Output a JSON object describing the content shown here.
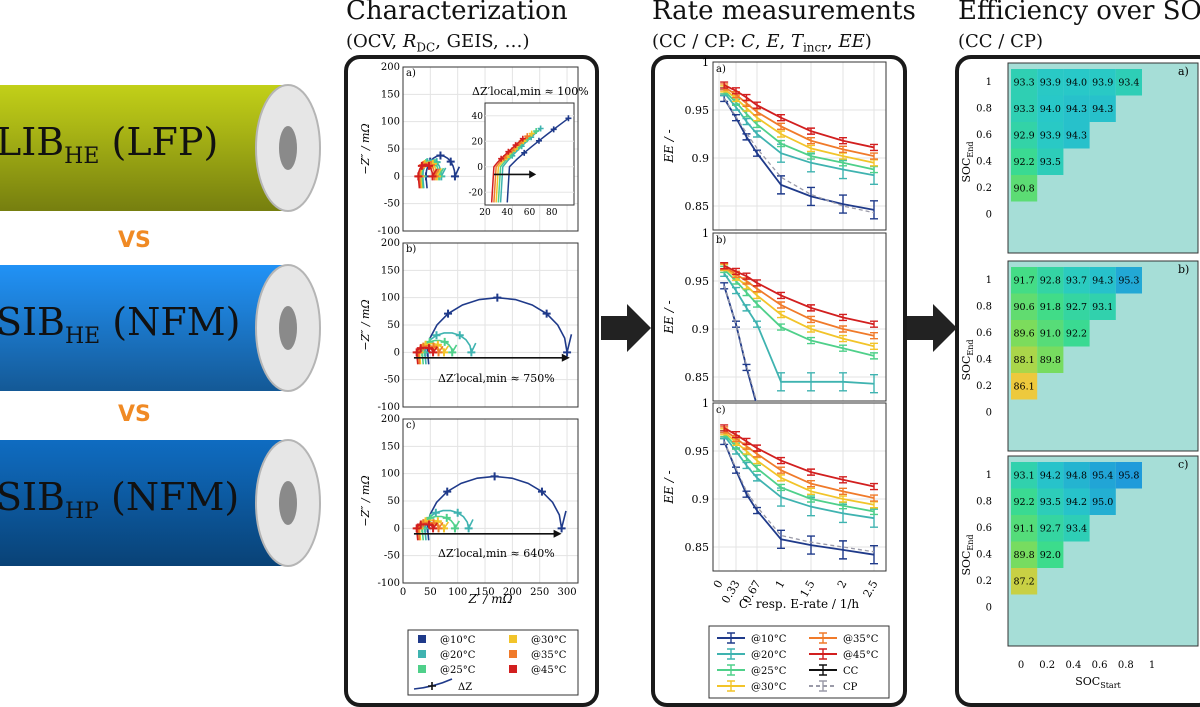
{
  "cells": [
    {
      "base": "LIB",
      "sub": "HE",
      "chem": "(LFP)",
      "color": "#a9b515"
    },
    {
      "base": "SIB",
      "sub": "HE",
      "chem": "(NFM)",
      "color": "#1d7fd6"
    },
    {
      "base": "SIB",
      "sub": "HP",
      "chem": "(NFM)",
      "color": "#0d5ea8"
    }
  ],
  "vs_label": "VS",
  "vs_color": "#f08a24",
  "columns": {
    "characterization": {
      "title": "Characterization",
      "subtitle": "(OCV, R_DC, GEIS, …)"
    },
    "rate": {
      "title": "Rate measurements",
      "subtitle": "(CC / CP: C, E, T_incr, EE)"
    },
    "efficiency": {
      "title": "Efficiency over SOC",
      "subtitle": "(CC / CP)"
    }
  },
  "chart_data": [
    {
      "type": "scatter",
      "name": "eis",
      "xlabel": "Z′ / mΩ",
      "ylabel": "−Z″ / mΩ",
      "xlim": [
        0,
        320
      ],
      "ylim": [
        -100,
        200
      ],
      "xticks": [
        0,
        50,
        100,
        150,
        200,
        250,
        300
      ],
      "yticks": [
        -100,
        -50,
        0,
        50,
        100,
        150,
        200
      ],
      "temperature_colors": {
        "@10°C": "#1f3a8a",
        "@20°C": "#3fb3b0",
        "@25°C": "#4fd08a",
        "@30°C": "#f2c42a",
        "@35°C": "#f07a2a",
        "@45°C": "#d21f1f"
      },
      "legend": [
        "@10°C",
        "@20°C",
        "@25°C",
        "@30°C",
        "@35°C",
        "@45°C",
        "ΔZ"
      ],
      "panels": [
        {
          "label": "a)",
          "annotation": "ΔZ′local,min ≈ 100%",
          "inset": {
            "xlim": [
              20,
              100
            ],
            "ylim": [
              -30,
              50
            ],
            "xticks": [
              20,
              40,
              60,
              80
            ],
            "yticks": [
              -20,
              0,
              20,
              40
            ]
          },
          "arcs": {
            "@10°C": {
              "start": 42,
              "end": 95,
              "height": 38
            },
            "@20°C": {
              "start": 36,
              "end": 70,
              "height": 30
            },
            "@25°C": {
              "start": 34,
              "end": 66,
              "height": 28
            },
            "@30°C": {
              "start": 32,
              "end": 62,
              "height": 26
            },
            "@35°C": {
              "start": 30,
              "end": 58,
              "height": 24
            },
            "@45°C": {
              "start": 28,
              "end": 54,
              "height": 22
            }
          }
        },
        {
          "label": "b)",
          "annotation": "ΔZ′local,min ≈ 750%",
          "arcs": {
            "@10°C": {
              "start": 45,
              "end": 300,
              "height": 100
            },
            "@20°C": {
              "start": 40,
              "end": 125,
              "height": 36
            },
            "@25°C": {
              "start": 35,
              "end": 90,
              "height": 22
            },
            "@30°C": {
              "start": 30,
              "end": 75,
              "height": 16
            },
            "@35°C": {
              "start": 28,
              "end": 65,
              "height": 12
            },
            "@45°C": {
              "start": 25,
              "end": 55,
              "height": 9
            }
          }
        },
        {
          "label": "c)",
          "annotation": "ΔZ′local,min ≈ 640%",
          "arcs": {
            "@10°C": {
              "start": 45,
              "end": 290,
              "height": 95
            },
            "@20°C": {
              "start": 40,
              "end": 120,
              "height": 33
            },
            "@25°C": {
              "start": 35,
              "end": 95,
              "height": 22
            },
            "@30°C": {
              "start": 30,
              "end": 75,
              "height": 15
            },
            "@35°C": {
              "start": 28,
              "end": 65,
              "height": 11
            },
            "@45°C": {
              "start": 25,
              "end": 55,
              "height": 8
            }
          }
        }
      ]
    },
    {
      "type": "line",
      "name": "rate",
      "xlabel": "C- resp. E-rate / 1/h",
      "ylabel": "EE / -",
      "x": [
        0.1,
        0.33,
        0.5,
        0.67,
        1,
        1.5,
        2,
        2.5
      ],
      "xticks": [
        "0",
        "0.33",
        "0.67",
        "1",
        "1.5",
        "2",
        "2.5"
      ],
      "ylim": [
        0.825,
        1.0
      ],
      "yticks": [
        0.85,
        0.9,
        0.95,
        1
      ],
      "series_colors": {
        "@10°C": "#1f3a8a",
        "@20°C": "#3fb3b0",
        "@25°C": "#4fd08a",
        "@30°C": "#f2c42a",
        "@35°C": "#f07a2a",
        "@45°C": "#d21f1f",
        "CC": "#111111",
        "CP": "#9a9aa8"
      },
      "legend": [
        "@10°C",
        "@35°C",
        "@20°C",
        "@45°C",
        "@25°C",
        "CC",
        "@30°C",
        "CP"
      ],
      "panels": [
        {
          "label": "a)",
          "series": [
            {
              "name": "@10°C",
              "values": [
                0.962,
                0.942,
                0.922,
                0.905,
                0.872,
                0.86,
                0.852,
                0.846
              ]
            },
            {
              "name": "@20°C",
              "values": [
                0.968,
                0.953,
                0.938,
                0.925,
                0.905,
                0.895,
                0.888,
                0.882
              ]
            },
            {
              "name": "@25°C",
              "values": [
                0.97,
                0.958,
                0.946,
                0.935,
                0.915,
                0.902,
                0.895,
                0.888
              ]
            },
            {
              "name": "@30°C",
              "values": [
                0.972,
                0.962,
                0.952,
                0.942,
                0.925,
                0.91,
                0.902,
                0.895
              ]
            },
            {
              "name": "@35°C",
              "values": [
                0.974,
                0.966,
                0.957,
                0.948,
                0.933,
                0.918,
                0.909,
                0.902
              ]
            },
            {
              "name": "@45°C",
              "values": [
                0.976,
                0.97,
                0.963,
                0.955,
                0.942,
                0.928,
                0.918,
                0.911
              ]
            },
            {
              "name": "CP",
              "values": [
                0.962,
                0.943,
                0.926,
                0.91,
                0.88,
                0.862,
                0.85,
                0.843
              ]
            }
          ]
        },
        {
          "label": "b)",
          "series": [
            {
              "name": "@10°C",
              "values": [
                0.945,
                0.905,
                0.86,
                0.82,
                0.8,
                0.8,
                0.8,
                0.8
              ]
            },
            {
              "name": "@20°C",
              "values": [
                0.958,
                0.94,
                0.922,
                0.905,
                0.845,
                0.845,
                0.845,
                0.843
              ]
            },
            {
              "name": "@25°C",
              "values": [
                0.962,
                0.95,
                0.938,
                0.926,
                0.902,
                0.888,
                0.88,
                0.872
              ]
            },
            {
              "name": "@30°C",
              "values": [
                0.964,
                0.954,
                0.945,
                0.935,
                0.915,
                0.9,
                0.89,
                0.882
              ]
            },
            {
              "name": "@35°C",
              "values": [
                0.965,
                0.957,
                0.95,
                0.942,
                0.925,
                0.91,
                0.9,
                0.893
              ]
            },
            {
              "name": "@45°C",
              "values": [
                0.966,
                0.96,
                0.955,
                0.948,
                0.935,
                0.922,
                0.912,
                0.905
              ]
            },
            {
              "name": "CP",
              "values": [
                0.945,
                0.905,
                0.862,
                0.823,
                0.8,
                0.8,
                0.8,
                0.8
              ]
            }
          ]
        },
        {
          "label": "c)",
          "series": [
            {
              "name": "@10°C",
              "values": [
                0.96,
                0.93,
                0.905,
                0.888,
                0.858,
                0.852,
                0.847,
                0.842
              ]
            },
            {
              "name": "@20°C",
              "values": [
                0.966,
                0.95,
                0.935,
                0.922,
                0.902,
                0.892,
                0.885,
                0.88
              ]
            },
            {
              "name": "@25°C",
              "values": [
                0.968,
                0.955,
                0.943,
                0.932,
                0.912,
                0.9,
                0.893,
                0.887
              ]
            },
            {
              "name": "@30°C",
              "values": [
                0.97,
                0.959,
                0.95,
                0.94,
                0.922,
                0.908,
                0.9,
                0.894
              ]
            },
            {
              "name": "@35°C",
              "values": [
                0.972,
                0.963,
                0.955,
                0.947,
                0.93,
                0.916,
                0.908,
                0.901
              ]
            },
            {
              "name": "@45°C",
              "values": [
                0.974,
                0.967,
                0.96,
                0.953,
                0.94,
                0.928,
                0.92,
                0.913
              ]
            },
            {
              "name": "CP",
              "values": [
                0.96,
                0.932,
                0.908,
                0.892,
                0.862,
                0.855,
                0.85,
                0.845
              ]
            }
          ]
        }
      ]
    },
    {
      "type": "heatmap",
      "name": "efficiency",
      "xlabel": "SOC_Start",
      "ylabel": "SOC_End",
      "xticks": [
        "0",
        "0.2",
        "0.4",
        "0.6",
        "0.8",
        "1"
      ],
      "yticks": [
        "1",
        "0.8",
        "0.6",
        "0.4",
        "0.2",
        "0"
      ],
      "background": "#a6ded7",
      "panels": [
        {
          "label": "a)",
          "rows": [
            [
              93.3,
              93.9,
              94.0,
              93.9,
              93.4
            ],
            [
              93.3,
              94.0,
              94.3,
              94.3
            ],
            [
              92.9,
              93.9,
              94.3
            ],
            [
              92.2,
              93.5
            ],
            [
              90.8
            ]
          ]
        },
        {
          "label": "b)",
          "rows": [
            [
              91.7,
              92.8,
              93.7,
              94.3,
              95.3
            ],
            [
              90.6,
              91.8,
              92.7,
              93.1
            ],
            [
              89.6,
              91.0,
              92.2
            ],
            [
              88.1,
              89.8
            ],
            [
              86.1
            ]
          ]
        },
        {
          "label": "c)",
          "rows": [
            [
              93.1,
              94.2,
              94.8,
              95.4,
              95.8
            ],
            [
              92.2,
              93.5,
              94.2,
              95.0
            ],
            [
              91.1,
              92.7,
              93.4
            ],
            [
              89.8,
              92.0
            ],
            [
              87.2
            ]
          ]
        }
      ]
    }
  ]
}
